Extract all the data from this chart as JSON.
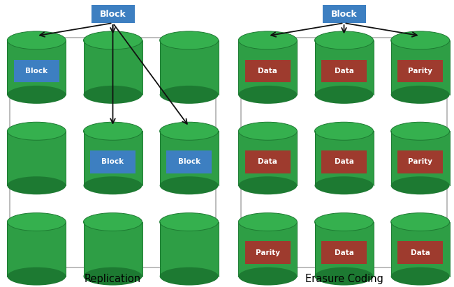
{
  "fig_width": 6.5,
  "fig_height": 4.12,
  "bg_color": "#ffffff",
  "green_body": "#2e9e45",
  "green_dark": "#1d7a32",
  "green_top": "#35b04e",
  "blue_box": "#3d7fc1",
  "red_box": "#9e3b2e",
  "border_color": "#b0b0b0",
  "arrow_color": "#111111",
  "title_fontsize": 10.5,
  "label_fontsize": 7.5,
  "header_fontsize": 9,
  "left_title": "Replication",
  "right_title": "Erasure Coding",
  "header_label": "Block",
  "replication_labels": [
    [
      "Block",
      null,
      null
    ],
    [
      null,
      "Block",
      "Block"
    ],
    [
      null,
      null,
      null
    ]
  ],
  "erasure_labels": [
    [
      "Data",
      "Data",
      "Parity"
    ],
    [
      "Data",
      "Data",
      "Parity"
    ],
    [
      "Parity",
      "Data",
      "Data"
    ]
  ]
}
